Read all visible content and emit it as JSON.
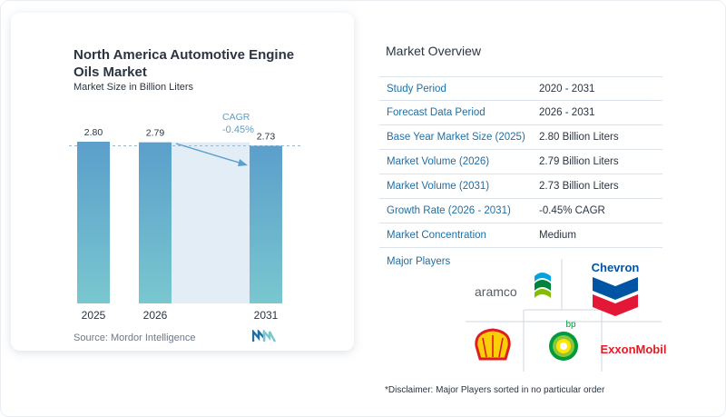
{
  "chart_data": {
    "type": "bar",
    "title": "North America Automotive Engine Oils Market",
    "subtitle": "Market Size in Billion Liters",
    "categories": [
      "2025",
      "2026",
      "2031"
    ],
    "values": [
      2.8,
      2.79,
      2.73
    ],
    "value_labels": [
      "2.80",
      "2.79",
      "2.73"
    ],
    "annotation": {
      "label": "CAGR",
      "value": "-0.45%"
    },
    "colors": {
      "bar_top": "#5b9fcb",
      "bar_bottom": "#79c7cf",
      "shade": "#e3edf5",
      "reference_line": "#9fb6c6",
      "annotation": "#5b9fcb"
    }
  },
  "source": "Source:  Mordor Intelligence",
  "overview": {
    "title": "Market Overview",
    "rows": [
      {
        "label": "Study Period",
        "value": "2020 - 2031"
      },
      {
        "label": "Forecast Data Period",
        "value": "2026 - 2031"
      },
      {
        "label": "Base Year Market Size (2025)",
        "value": "2.80 Billion Liters"
      },
      {
        "label": "Market Volume (2026)",
        "value": "2.79 Billion Liters"
      },
      {
        "label": "Market Volume (2031)",
        "value": "2.73 Billion Liters"
      },
      {
        "label": "Growth Rate (2026 - 2031)",
        "value": "-0.45% CAGR"
      },
      {
        "label": "Market Concentration",
        "value": "Medium"
      }
    ]
  },
  "players": {
    "label": "Major Players",
    "logos": [
      "aramco",
      "Chevron",
      "bp",
      "ExxonMobil"
    ],
    "icons": [
      "aramco-logo",
      "chevron-logo",
      "shell-logo",
      "bp-logo",
      "exxonmobil-logo"
    ]
  },
  "disclaimer": "*Disclaimer: Major Players sorted in no particular order"
}
